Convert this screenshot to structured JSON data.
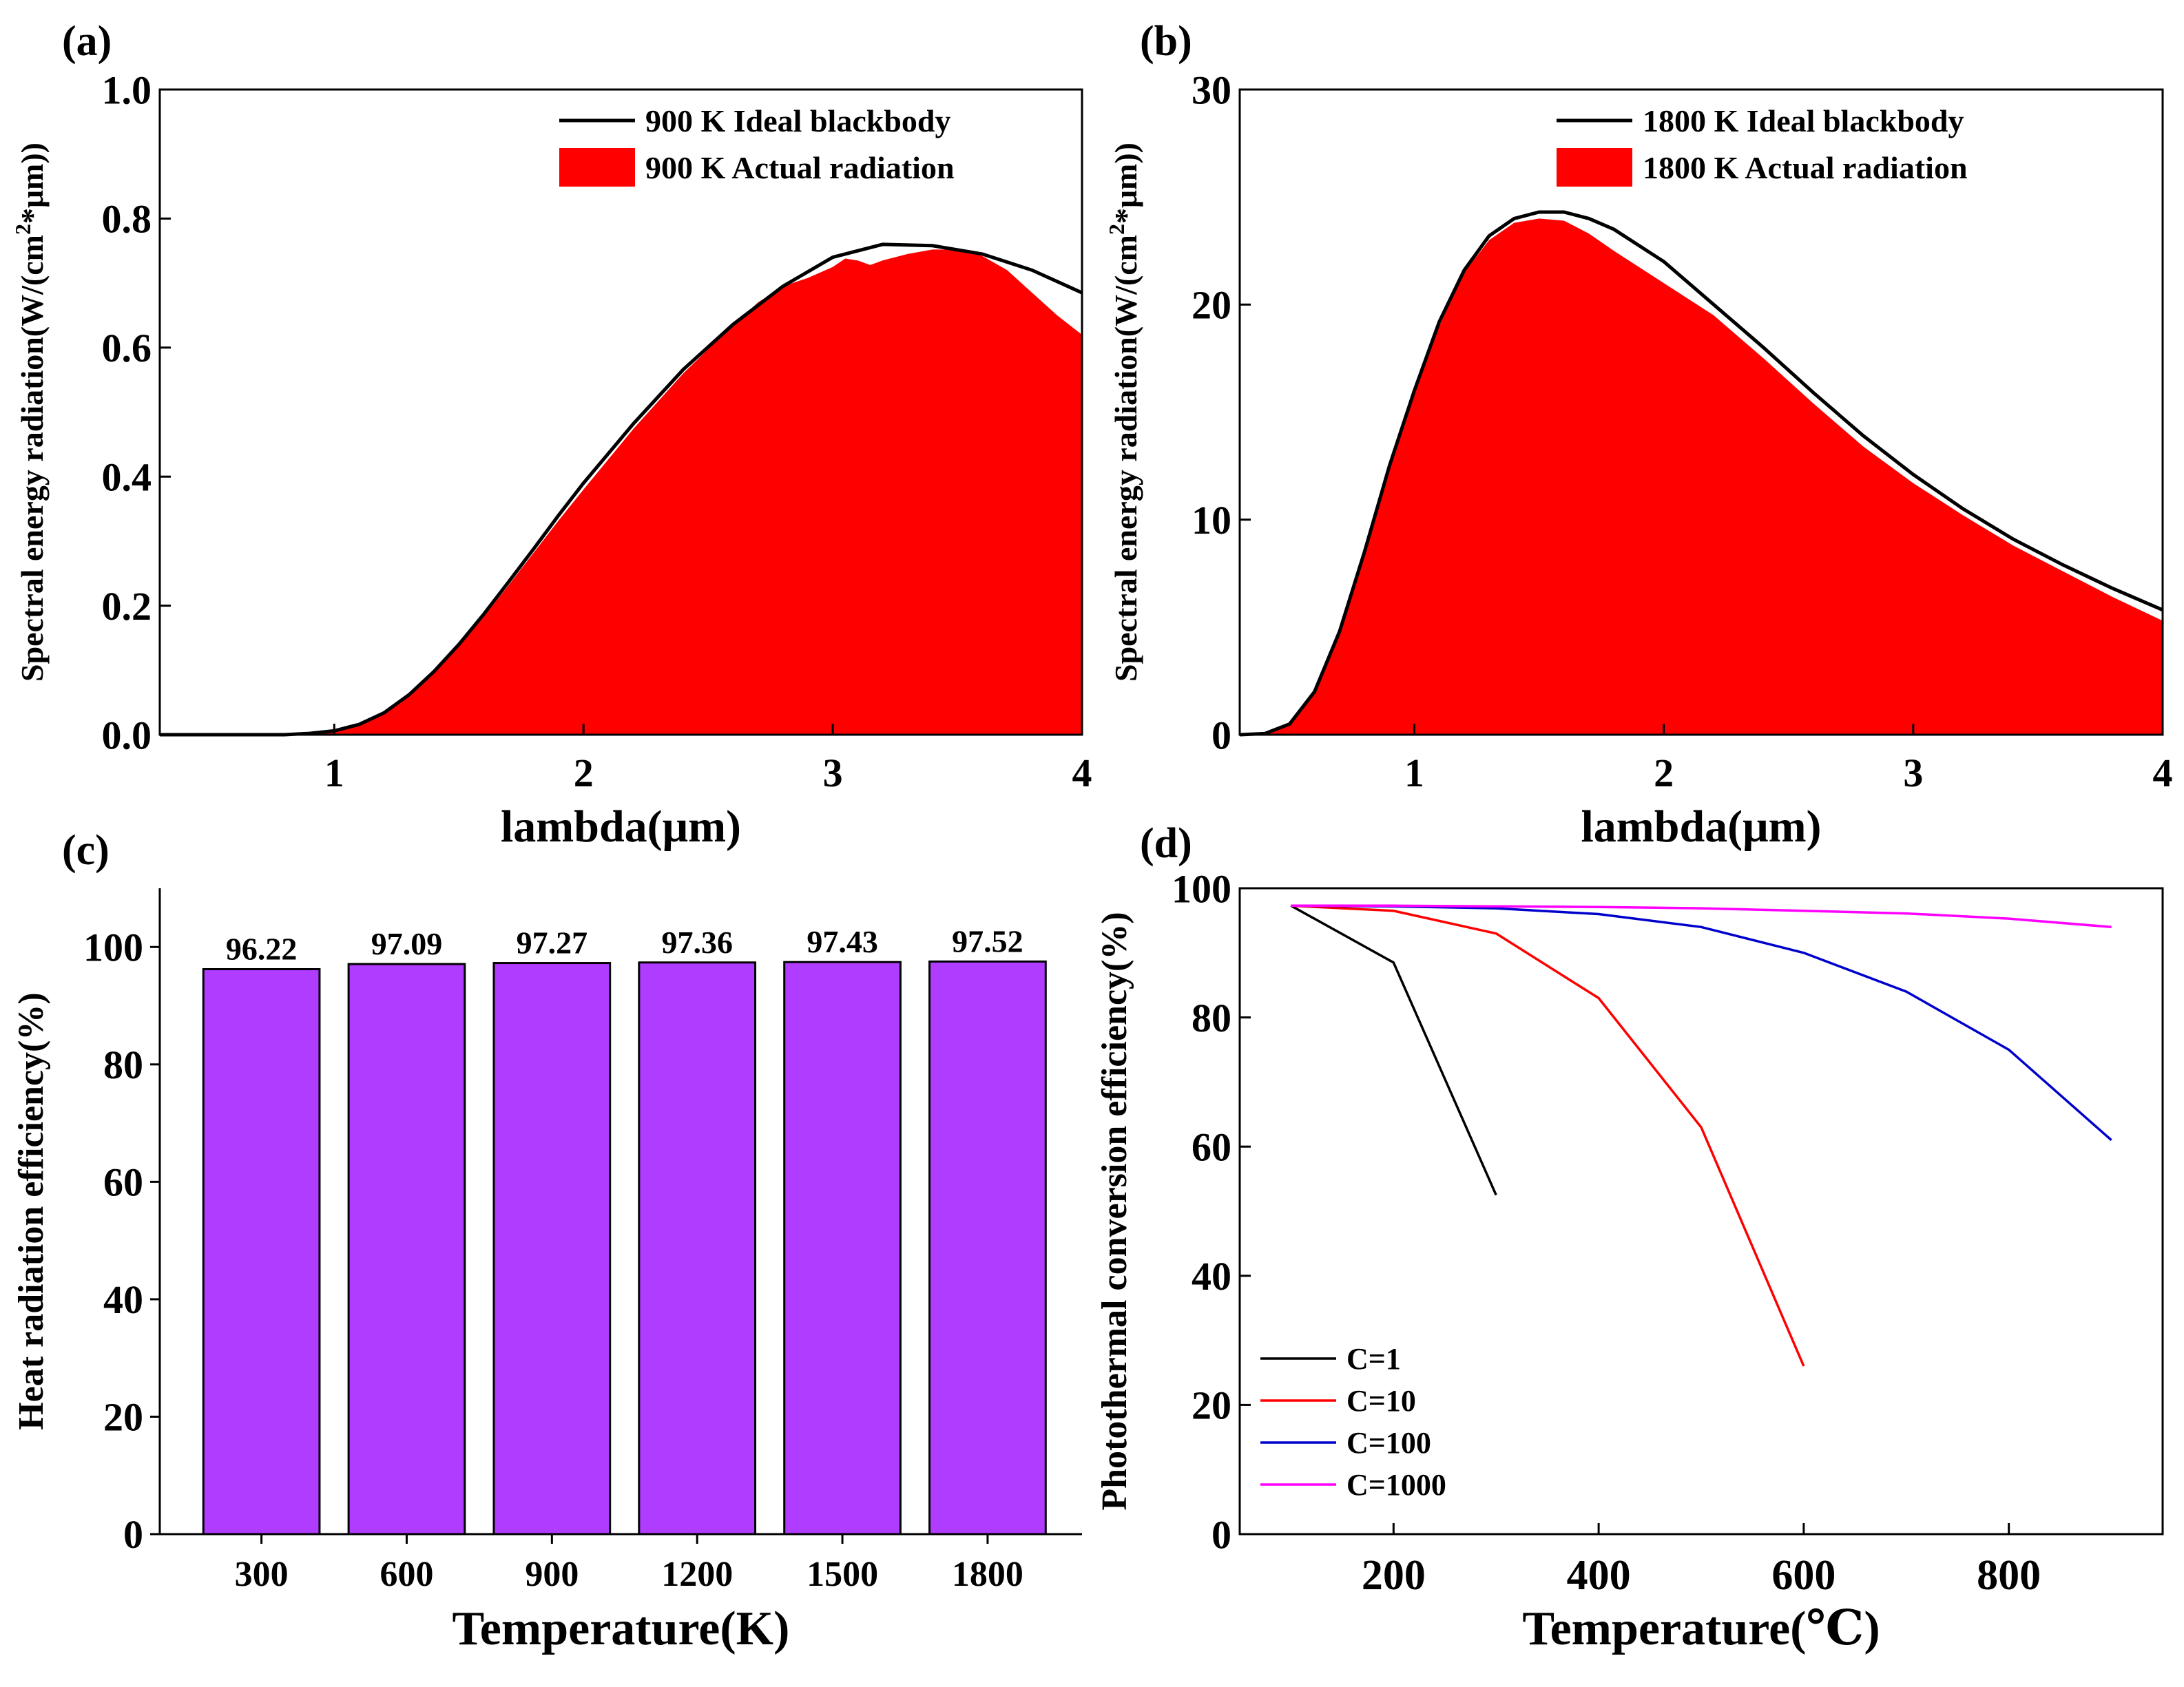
{
  "figure": {
    "colors": {
      "fill_red": "#ff0000",
      "bar_purple": "#b03cff",
      "c1": "#000000",
      "c10": "#ff0000",
      "c100": "#0000cc",
      "c1000": "#ff00ff"
    }
  },
  "chart_data": [
    {
      "id": "a",
      "panel_label": "(a)",
      "type": "area",
      "xlabel": "lambda(μm)",
      "ylabel": "Spectral energy radiation(W/(cm²*μm))",
      "xlim": [
        0.3,
        4.0
      ],
      "ylim": [
        0,
        1.0
      ],
      "xticks": [
        1,
        2,
        3,
        4
      ],
      "yticks": [
        0.0,
        0.2,
        0.4,
        0.6,
        0.8,
        1.0
      ],
      "ytick_labels": [
        "0.0",
        "0.2",
        "0.4",
        "0.6",
        "0.8",
        "1.0"
      ],
      "legend_position": "top-right",
      "series": [
        {
          "name": "900 K Ideal blackbody",
          "style": "line",
          "x": [
            0.3,
            0.6,
            0.8,
            0.9,
            1.0,
            1.1,
            1.2,
            1.3,
            1.4,
            1.5,
            1.6,
            1.7,
            1.8,
            1.9,
            2.0,
            2.2,
            2.4,
            2.6,
            2.8,
            3.0,
            3.2,
            3.4,
            3.6,
            3.8,
            4.0
          ],
          "y": [
            0.0,
            0.0,
            0.0,
            0.002,
            0.006,
            0.016,
            0.034,
            0.062,
            0.098,
            0.14,
            0.187,
            0.237,
            0.288,
            0.34,
            0.39,
            0.482,
            0.566,
            0.636,
            0.695,
            0.74,
            0.76,
            0.758,
            0.745,
            0.72,
            0.685
          ]
        },
        {
          "name": "900 K Actual radiation",
          "style": "area",
          "x": [
            0.3,
            0.6,
            0.8,
            0.9,
            1.0,
            1.1,
            1.2,
            1.3,
            1.4,
            1.5,
            1.6,
            1.7,
            1.8,
            1.9,
            2.0,
            2.2,
            2.4,
            2.6,
            2.7,
            2.8,
            2.9,
            3.0,
            3.05,
            3.1,
            3.15,
            3.2,
            3.3,
            3.4,
            3.5,
            3.6,
            3.7,
            3.8,
            3.9,
            4.0
          ],
          "y": [
            0.0,
            0.0,
            0.0,
            0.002,
            0.006,
            0.016,
            0.033,
            0.06,
            0.095,
            0.137,
            0.183,
            0.232,
            0.282,
            0.332,
            0.38,
            0.474,
            0.56,
            0.635,
            0.67,
            0.695,
            0.708,
            0.725,
            0.738,
            0.735,
            0.728,
            0.735,
            0.745,
            0.752,
            0.752,
            0.742,
            0.72,
            0.685,
            0.65,
            0.62
          ]
        }
      ]
    },
    {
      "id": "b",
      "panel_label": "(b)",
      "type": "area",
      "xlabel": "lambda(μm)",
      "ylabel": "Spectral energy radiation(W/(cm²*μm))",
      "xlim": [
        0.3,
        4.0
      ],
      "ylim": [
        0,
        30
      ],
      "xticks": [
        1,
        2,
        3,
        4
      ],
      "yticks": [
        0,
        10,
        20,
        30
      ],
      "ytick_labels": [
        "0",
        "10",
        "20",
        "30"
      ],
      "legend_position": "top-right",
      "series": [
        {
          "name": "1800 K Ideal blackbody",
          "style": "line",
          "x": [
            0.3,
            0.4,
            0.5,
            0.6,
            0.7,
            0.8,
            0.9,
            1.0,
            1.1,
            1.2,
            1.3,
            1.4,
            1.5,
            1.6,
            1.7,
            1.8,
            2.0,
            2.2,
            2.4,
            2.6,
            2.8,
            3.0,
            3.2,
            3.4,
            3.6,
            3.8,
            4.0
          ],
          "y": [
            0.0,
            0.05,
            0.5,
            2.0,
            4.8,
            8.5,
            12.5,
            16.0,
            19.2,
            21.6,
            23.2,
            24.0,
            24.3,
            24.3,
            24.0,
            23.5,
            22.0,
            20.0,
            18.0,
            15.9,
            13.9,
            12.1,
            10.5,
            9.1,
            7.9,
            6.8,
            5.8
          ]
        },
        {
          "name": "1800 K Actual  radiation",
          "style": "area",
          "x": [
            0.3,
            0.4,
            0.5,
            0.6,
            0.7,
            0.8,
            0.9,
            1.0,
            1.1,
            1.2,
            1.3,
            1.4,
            1.5,
            1.6,
            1.7,
            1.8,
            2.0,
            2.2,
            2.4,
            2.6,
            2.8,
            3.0,
            3.2,
            3.4,
            3.6,
            3.8,
            4.0
          ],
          "y": [
            0.0,
            0.05,
            0.5,
            2.0,
            4.7,
            8.3,
            12.3,
            15.8,
            19.0,
            21.5,
            23.0,
            23.8,
            24.0,
            23.9,
            23.3,
            22.5,
            21.0,
            19.5,
            17.5,
            15.4,
            13.4,
            11.7,
            10.2,
            8.8,
            7.6,
            6.4,
            5.3
          ]
        }
      ]
    },
    {
      "id": "c",
      "panel_label": "(c)",
      "type": "bar",
      "xlabel": "Temperature(K)",
      "ylabel": "Heat radiation efficiency(%)",
      "ylim": [
        0,
        110
      ],
      "yticks": [
        0,
        20,
        40,
        60,
        80,
        100
      ],
      "categories": [
        "300",
        "600",
        "900",
        "1200",
        "1500",
        "1800"
      ],
      "values": [
        96.22,
        97.09,
        97.27,
        97.36,
        97.43,
        97.52
      ],
      "value_labels": [
        "96.22",
        "97.09",
        "97.27",
        "97.36",
        "97.43",
        "97.52"
      ]
    },
    {
      "id": "d",
      "panel_label": "(d)",
      "type": "line",
      "xlabel": "Temperature(℃)",
      "ylabel": "Photothermal conversion efficiency(%)",
      "xlim": [
        50,
        950
      ],
      "ylim": [
        0,
        100
      ],
      "xticks": [
        200,
        400,
        600,
        800
      ],
      "yticks": [
        0,
        20,
        40,
        60,
        80,
        100
      ],
      "legend_position": "bottom-left",
      "series": [
        {
          "name": "C=1",
          "x": [
            100,
            200,
            300
          ],
          "y": [
            97.3,
            88.5,
            52.5
          ]
        },
        {
          "name": "C=10",
          "x": [
            100,
            200,
            300,
            400,
            500,
            600
          ],
          "y": [
            97.3,
            96.5,
            93.0,
            83.0,
            63.0,
            26.0
          ]
        },
        {
          "name": "C=100",
          "x": [
            100,
            200,
            300,
            400,
            500,
            600,
            700,
            800,
            900
          ],
          "y": [
            97.3,
            97.2,
            96.9,
            96.0,
            94.0,
            90.0,
            84.0,
            75.0,
            61.0
          ]
        },
        {
          "name": "C=1000",
          "x": [
            100,
            200,
            300,
            400,
            500,
            600,
            700,
            800,
            900
          ],
          "y": [
            97.3,
            97.3,
            97.2,
            97.1,
            96.9,
            96.5,
            96.1,
            95.3,
            94.0
          ]
        }
      ]
    }
  ]
}
